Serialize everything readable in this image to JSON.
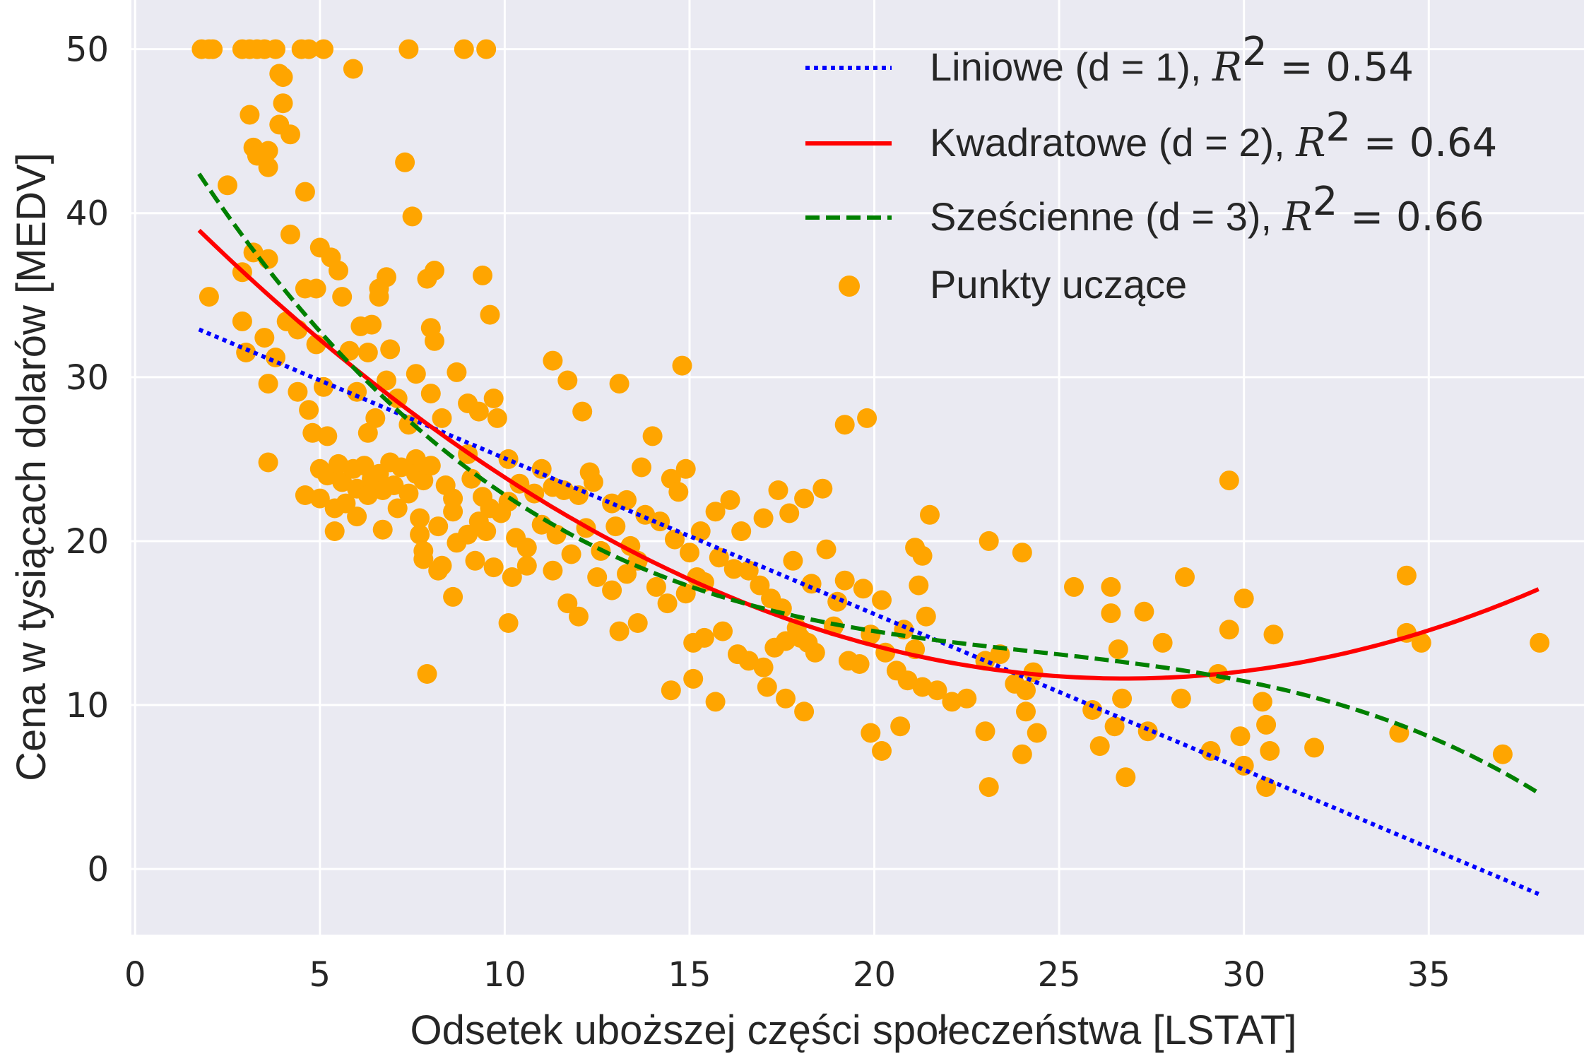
{
  "chart_data": {
    "type": "scatter",
    "title": "",
    "xlabel": "Odsetek uboższej części społeczeństwa [LSTAT]",
    "ylabel": "Cena w tysiącach dolarów [MEDV]",
    "xlim": [
      -0.1,
      39.2
    ],
    "ylim": [
      -4,
      53
    ],
    "xticks": [
      0,
      5,
      10,
      15,
      20,
      25,
      30,
      35
    ],
    "yticks": [
      0,
      10,
      20,
      30,
      40,
      50
    ],
    "grid": true,
    "background": "#eaeaf2",
    "legend_position": "top-right",
    "series": [
      {
        "name": "Liniowe (d = 1), ",
        "name_math": "= 0.54",
        "kind": "line",
        "style": "dotted",
        "color": "#0000ff",
        "model": {
          "degree": 1,
          "coefficients": [
            34.55,
            -0.95
          ],
          "x_range": [
            1.73,
            37.97
          ]
        }
      },
      {
        "name": "Kwadratowe (d = 2), ",
        "name_math": "= 0.64",
        "kind": "line",
        "style": "solid",
        "color": "#ff0000",
        "model": {
          "degree": 2,
          "coefficients": [
            42.86,
            -2.3329,
            0.04355
          ],
          "x_range": [
            1.73,
            37.97
          ]
        }
      },
      {
        "name": "Sześcienne (d = 3), ",
        "name_math": "= 0.66",
        "kind": "line",
        "style": "dashed",
        "color": "#008000",
        "model": {
          "degree": 3,
          "coefficients": [
            48.65,
            -3.8656,
            0.1487,
            -0.002039
          ],
          "x_range": [
            1.73,
            37.97
          ]
        }
      },
      {
        "name": "Punkty uczące",
        "kind": "scatter",
        "color": "#ffa500",
        "points": [
          [
            1.8,
            50
          ],
          [
            2.0,
            50
          ],
          [
            2.1,
            50
          ],
          [
            2.9,
            50
          ],
          [
            3.1,
            50
          ],
          [
            3.3,
            50
          ],
          [
            3.5,
            50
          ],
          [
            3.8,
            50
          ],
          [
            4.5,
            50
          ],
          [
            4.7,
            50
          ],
          [
            5.1,
            50
          ],
          [
            7.4,
            50
          ],
          [
            8.9,
            50
          ],
          [
            9.5,
            50
          ],
          [
            5.9,
            48.8
          ],
          [
            3.9,
            48.5
          ],
          [
            4.0,
            48.3
          ],
          [
            4.0,
            46.7
          ],
          [
            3.1,
            46.0
          ],
          [
            3.9,
            45.4
          ],
          [
            4.2,
            44.8
          ],
          [
            3.2,
            44.0
          ],
          [
            3.3,
            43.5
          ],
          [
            3.6,
            43.8
          ],
          [
            3.6,
            42.8
          ],
          [
            7.3,
            43.1
          ],
          [
            2.5,
            41.7
          ],
          [
            4.6,
            41.3
          ],
          [
            7.5,
            39.8
          ],
          [
            4.2,
            38.7
          ],
          [
            3.2,
            37.6
          ],
          [
            3.6,
            37.2
          ],
          [
            5.3,
            37.3
          ],
          [
            5.5,
            36.5
          ],
          [
            5.0,
            37.9
          ],
          [
            2.9,
            36.4
          ],
          [
            6.8,
            36.1
          ],
          [
            7.9,
            36.0
          ],
          [
            8.1,
            36.5
          ],
          [
            9.4,
            36.2
          ],
          [
            2.0,
            34.9
          ],
          [
            4.6,
            35.4
          ],
          [
            4.9,
            35.4
          ],
          [
            5.6,
            34.9
          ],
          [
            6.6,
            34.9
          ],
          [
            6.6,
            35.4
          ],
          [
            9.6,
            33.8
          ],
          [
            2.9,
            33.4
          ],
          [
            4.1,
            33.4
          ],
          [
            6.1,
            33.1
          ],
          [
            6.4,
            33.2
          ],
          [
            8.0,
            33.0
          ],
          [
            8.1,
            32.2
          ],
          [
            4.4,
            32.9
          ],
          [
            3.5,
            32.4
          ],
          [
            4.9,
            32.0
          ],
          [
            5.8,
            31.6
          ],
          [
            6.3,
            31.5
          ],
          [
            6.9,
            31.7
          ],
          [
            3.0,
            31.5
          ],
          [
            3.8,
            31.2
          ],
          [
            7.6,
            30.2
          ],
          [
            8.7,
            30.3
          ],
          [
            11.3,
            31.0
          ],
          [
            11.7,
            29.8
          ],
          [
            13.1,
            29.6
          ],
          [
            14.8,
            30.7
          ],
          [
            3.6,
            29.6
          ],
          [
            4.4,
            29.1
          ],
          [
            5.1,
            29.4
          ],
          [
            6.0,
            29.1
          ],
          [
            6.8,
            29.8
          ],
          [
            7.1,
            28.7
          ],
          [
            8.0,
            29.0
          ],
          [
            9.0,
            28.4
          ],
          [
            9.7,
            28.7
          ],
          [
            4.7,
            28.0
          ],
          [
            6.5,
            27.5
          ],
          [
            7.4,
            27.1
          ],
          [
            8.3,
            27.5
          ],
          [
            9.3,
            27.9
          ],
          [
            9.8,
            27.5
          ],
          [
            12.1,
            27.9
          ],
          [
            5.2,
            26.4
          ],
          [
            6.3,
            26.6
          ],
          [
            4.8,
            26.6
          ],
          [
            7.6,
            25.0
          ],
          [
            9.0,
            25.3
          ],
          [
            10.1,
            25.0
          ],
          [
            11.0,
            24.4
          ],
          [
            12.3,
            24.2
          ],
          [
            14.0,
            26.4
          ],
          [
            3.6,
            24.8
          ],
          [
            5.0,
            24.4
          ],
          [
            5.2,
            24.0
          ],
          [
            5.5,
            24.7
          ],
          [
            5.6,
            23.6
          ],
          [
            5.9,
            24.4
          ],
          [
            6.0,
            23.2
          ],
          [
            6.2,
            24.6
          ],
          [
            6.4,
            23.8
          ],
          [
            6.6,
            24.1
          ],
          [
            6.7,
            23.1
          ],
          [
            6.9,
            24.8
          ],
          [
            7.0,
            23.4
          ],
          [
            7.2,
            24.5
          ],
          [
            7.4,
            22.9
          ],
          [
            7.6,
            24.1
          ],
          [
            7.8,
            23.7
          ],
          [
            8.0,
            24.6
          ],
          [
            8.4,
            23.4
          ],
          [
            8.6,
            22.6
          ],
          [
            9.1,
            23.8
          ],
          [
            9.4,
            22.7
          ],
          [
            9.6,
            22.0
          ],
          [
            10.1,
            22.4
          ],
          [
            10.4,
            23.5
          ],
          [
            10.8,
            22.9
          ],
          [
            11.3,
            23.3
          ],
          [
            11.6,
            23.1
          ],
          [
            12.0,
            22.8
          ],
          [
            12.4,
            23.6
          ],
          [
            12.9,
            22.3
          ],
          [
            13.3,
            22.5
          ],
          [
            13.7,
            24.5
          ],
          [
            14.5,
            23.8
          ],
          [
            14.7,
            23.0
          ],
          [
            14.9,
            24.4
          ],
          [
            4.6,
            22.8
          ],
          [
            5.0,
            22.6
          ],
          [
            5.4,
            22.0
          ],
          [
            5.7,
            22.3
          ],
          [
            6.0,
            21.5
          ],
          [
            6.3,
            22.8
          ],
          [
            6.7,
            20.7
          ],
          [
            7.1,
            22.0
          ],
          [
            7.7,
            21.4
          ],
          [
            8.2,
            20.9
          ],
          [
            8.6,
            21.8
          ],
          [
            9.0,
            20.4
          ],
          [
            9.3,
            21.2
          ],
          [
            9.5,
            20.6
          ],
          [
            9.9,
            21.7
          ],
          [
            10.3,
            20.2
          ],
          [
            10.6,
            19.6
          ],
          [
            11.0,
            21.0
          ],
          [
            11.4,
            20.4
          ],
          [
            11.8,
            19.2
          ],
          [
            12.2,
            20.8
          ],
          [
            12.6,
            19.4
          ],
          [
            13.0,
            20.9
          ],
          [
            13.4,
            19.7
          ],
          [
            13.8,
            21.6
          ],
          [
            14.2,
            21.2
          ],
          [
            14.6,
            20.1
          ],
          [
            15.0,
            19.3
          ],
          [
            15.3,
            20.6
          ],
          [
            15.7,
            21.8
          ],
          [
            16.1,
            22.5
          ],
          [
            16.4,
            20.6
          ],
          [
            17.0,
            21.4
          ],
          [
            17.4,
            23.1
          ],
          [
            17.7,
            21.7
          ],
          [
            18.1,
            22.6
          ],
          [
            18.6,
            23.2
          ],
          [
            19.2,
            27.1
          ],
          [
            19.8,
            27.5
          ],
          [
            5.4,
            20.6
          ],
          [
            7.7,
            20.4
          ],
          [
            7.8,
            19.4
          ],
          [
            8.3,
            18.5
          ],
          [
            8.7,
            19.9
          ],
          [
            9.2,
            18.8
          ],
          [
            9.7,
            18.4
          ],
          [
            10.2,
            17.8
          ],
          [
            10.6,
            18.5
          ],
          [
            11.3,
            18.2
          ],
          [
            11.7,
            16.2
          ],
          [
            12.0,
            15.4
          ],
          [
            12.5,
            17.8
          ],
          [
            12.9,
            17.0
          ],
          [
            13.3,
            18.0
          ],
          [
            13.6,
            18.8
          ],
          [
            14.1,
            17.2
          ],
          [
            14.4,
            16.2
          ],
          [
            14.9,
            16.8
          ],
          [
            15.4,
            17.5
          ],
          [
            15.8,
            19.0
          ],
          [
            16.2,
            18.3
          ],
          [
            16.6,
            18.2
          ],
          [
            16.9,
            17.3
          ],
          [
            17.2,
            16.5
          ],
          [
            17.5,
            15.9
          ],
          [
            17.8,
            18.8
          ],
          [
            18.3,
            17.4
          ],
          [
            18.7,
            19.5
          ],
          [
            19.2,
            17.6
          ],
          [
            7.8,
            18.9
          ],
          [
            8.2,
            18.2
          ],
          [
            8.6,
            16.6
          ],
          [
            10.1,
            15.0
          ],
          [
            13.1,
            14.5
          ],
          [
            13.6,
            15.0
          ],
          [
            15.1,
            13.8
          ],
          [
            15.4,
            14.1
          ],
          [
            15.9,
            14.5
          ],
          [
            16.3,
            13.1
          ],
          [
            16.6,
            12.7
          ],
          [
            17.0,
            12.3
          ],
          [
            17.3,
            13.5
          ],
          [
            17.6,
            13.9
          ],
          [
            18.0,
            14.1
          ],
          [
            18.4,
            13.2
          ],
          [
            18.9,
            14.8
          ],
          [
            19.3,
            12.7
          ],
          [
            19.6,
            12.5
          ],
          [
            19.9,
            14.3
          ],
          [
            20.3,
            13.2
          ],
          [
            20.6,
            12.1
          ],
          [
            20.9,
            11.5
          ],
          [
            21.3,
            11.1
          ],
          [
            21.7,
            10.9
          ],
          [
            22.1,
            10.2
          ],
          [
            22.5,
            10.4
          ],
          [
            23.0,
            12.7
          ],
          [
            23.4,
            13.1
          ],
          [
            23.8,
            11.3
          ],
          [
            24.1,
            10.9
          ],
          [
            24.3,
            12.0
          ],
          [
            15.2,
            17.8
          ],
          [
            17.9,
            14.7
          ],
          [
            18.2,
            13.8
          ],
          [
            19.0,
            16.3
          ],
          [
            19.7,
            17.1
          ],
          [
            20.2,
            16.4
          ],
          [
            20.8,
            14.6
          ],
          [
            21.1,
            13.4
          ],
          [
            21.4,
            15.4
          ],
          [
            21.2,
            17.3
          ],
          [
            21.3,
            19.1
          ],
          [
            21.1,
            19.6
          ],
          [
            21.5,
            21.6
          ],
          [
            23.1,
            20.0
          ],
          [
            24.0,
            19.3
          ],
          [
            7.9,
            11.9
          ],
          [
            14.5,
            10.9
          ],
          [
            15.1,
            11.6
          ],
          [
            15.7,
            10.2
          ],
          [
            17.1,
            11.1
          ],
          [
            17.6,
            10.4
          ],
          [
            18.1,
            9.6
          ],
          [
            19.9,
            8.3
          ],
          [
            20.2,
            7.2
          ],
          [
            20.7,
            8.7
          ],
          [
            23.0,
            8.4
          ],
          [
            23.1,
            5.0
          ],
          [
            24.0,
            7.0
          ],
          [
            24.4,
            8.3
          ],
          [
            24.1,
            9.6
          ],
          [
            25.4,
            17.2
          ],
          [
            26.4,
            17.2
          ],
          [
            26.4,
            15.6
          ],
          [
            27.3,
            15.7
          ],
          [
            26.6,
            13.4
          ],
          [
            27.8,
            13.8
          ],
          [
            28.4,
            17.8
          ],
          [
            25.9,
            9.7
          ],
          [
            26.1,
            7.5
          ],
          [
            26.5,
            8.7
          ],
          [
            26.8,
            5.6
          ],
          [
            27.4,
            8.4
          ],
          [
            26.7,
            10.4
          ],
          [
            28.3,
            10.4
          ],
          [
            29.1,
            7.2
          ],
          [
            29.3,
            11.9
          ],
          [
            29.6,
            14.6
          ],
          [
            29.9,
            8.1
          ],
          [
            30.0,
            6.3
          ],
          [
            30.6,
            5.0
          ],
          [
            30.6,
            8.8
          ],
          [
            30.7,
            7.2
          ],
          [
            30.8,
            14.3
          ],
          [
            30.5,
            10.2
          ],
          [
            29.6,
            23.7
          ],
          [
            30.0,
            16.5
          ],
          [
            31.9,
            7.4
          ],
          [
            34.4,
            17.9
          ],
          [
            34.4,
            14.4
          ],
          [
            34.8,
            13.8
          ],
          [
            34.2,
            8.3
          ],
          [
            37.0,
            7.0
          ],
          [
            38.0,
            13.8
          ]
        ]
      }
    ]
  }
}
